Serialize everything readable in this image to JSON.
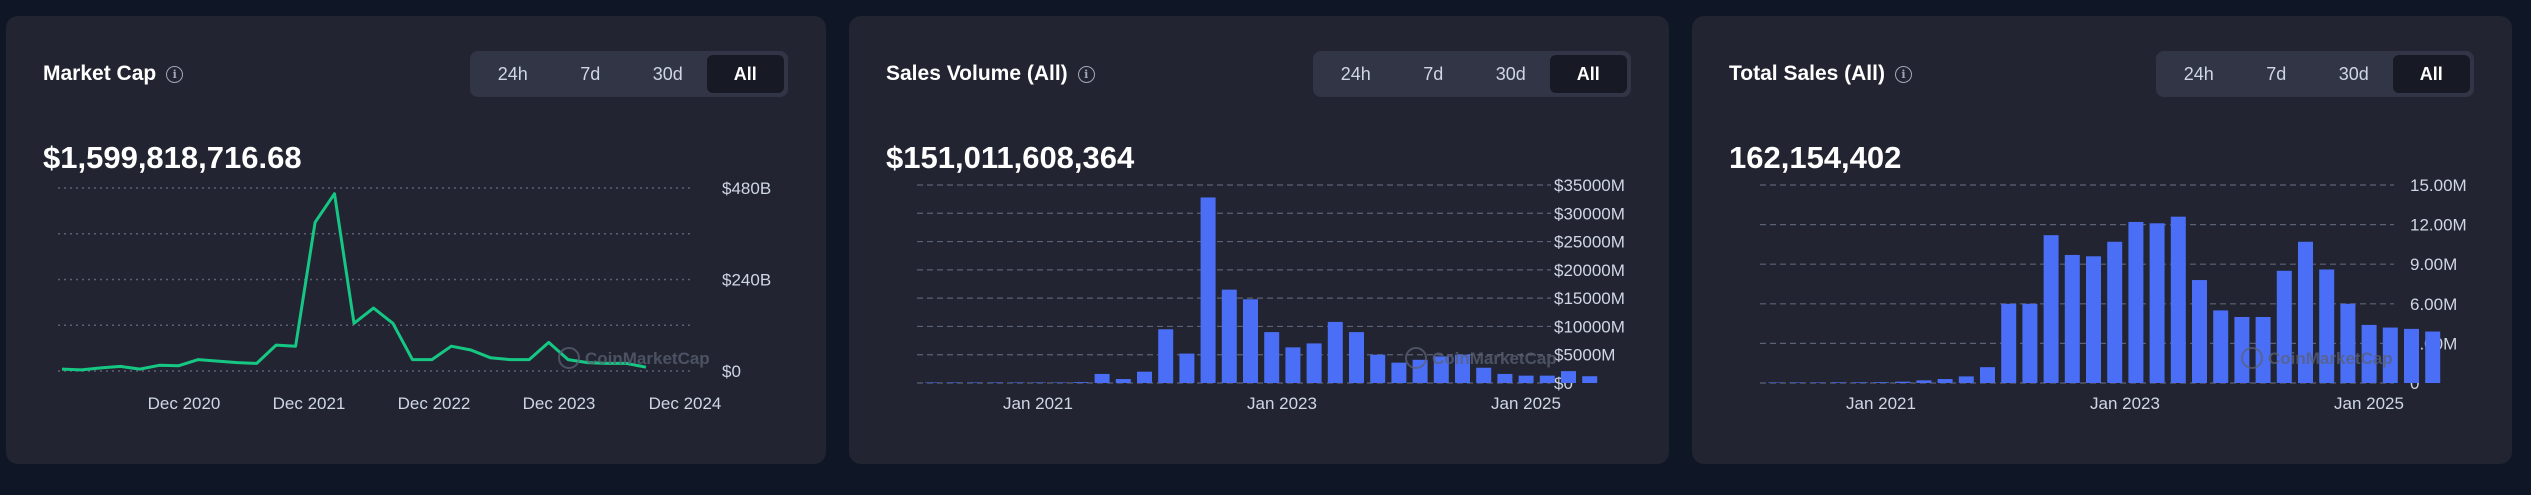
{
  "watermark": "CoinMarketCap",
  "colors": {
    "line": "#16c784",
    "bar": "#4a6ef5",
    "grid": "#5b6174",
    "background": "#222531",
    "page": "#0f1626"
  },
  "icons": {
    "info": "info-circle-icon"
  },
  "cards": [
    {
      "title": "Market Cap",
      "value": "$1,599,818,716.68",
      "ranges": [
        "24h",
        "7d",
        "30d",
        "All"
      ],
      "active_range": "All"
    },
    {
      "title": "Sales Volume (All)",
      "value": "$151,011,608,364",
      "ranges": [
        "24h",
        "7d",
        "30d",
        "All"
      ],
      "active_range": "All"
    },
    {
      "title": "Total Sales (All)",
      "value": "162,154,402",
      "ranges": [
        "24h",
        "7d",
        "30d",
        "All"
      ],
      "active_range": "All"
    }
  ],
  "chart_data": [
    {
      "type": "line",
      "title": "Market Cap",
      "color": "#16c784",
      "ylim": [
        0,
        480
      ],
      "yticks": [
        0,
        240,
        480
      ],
      "ytick_labels": [
        "$0",
        "$240B",
        "$480B"
      ],
      "grid": "dotted",
      "x_tick_labels": [
        "Dec 2020",
        "Dec 2021",
        "Dec 2022",
        "Dec 2023",
        "Dec 2024"
      ],
      "x": [
        "2019-12",
        "2020-02",
        "2020-04",
        "2020-06",
        "2020-08",
        "2020-10",
        "2020-12",
        "2021-02",
        "2021-04",
        "2021-06",
        "2021-08",
        "2021-10",
        "2021-12",
        "2022-02",
        "2022-04",
        "2022-06",
        "2022-08",
        "2022-10",
        "2022-12",
        "2023-02",
        "2023-04",
        "2023-06",
        "2023-08",
        "2023-10",
        "2023-12",
        "2024-02",
        "2024-04",
        "2024-06",
        "2024-08",
        "2024-10",
        "2024-12"
      ],
      "values": [
        5,
        3,
        8,
        12,
        5,
        15,
        14,
        30,
        26,
        22,
        20,
        68,
        65,
        390,
        465,
        125,
        165,
        125,
        30,
        30,
        65,
        55,
        35,
        30,
        30,
        75,
        30,
        22,
        20,
        20,
        10
      ]
    },
    {
      "type": "bar",
      "title": "Sales Volume (All)",
      "color": "#4a6ef5",
      "ylim": [
        0,
        35000
      ],
      "yticks": [
        0,
        5000,
        10000,
        15000,
        20000,
        25000,
        30000,
        35000
      ],
      "ytick_labels": [
        "$0",
        "$5000M",
        "$10000M",
        "$15000M",
        "$20000M",
        "$25000M",
        "$30000M",
        "$35000M"
      ],
      "grid": "dashed",
      "x_tick_labels": [
        "Jan 2021",
        "Jan 2023",
        "Jan 2025"
      ],
      "values": [
        0,
        0,
        0,
        0,
        0,
        0,
        40,
        150,
        1600,
        700,
        2000,
        9500,
        5200,
        32800,
        16500,
        14800,
        9000,
        6300,
        7000,
        10800,
        9000,
        5000,
        3600,
        4100,
        4700,
        5000,
        2700,
        1600,
        1300,
        1300,
        2100,
        1200
      ]
    },
    {
      "type": "bar",
      "title": "Total Sales (All)",
      "color": "#4a6ef5",
      "ylim": [
        0,
        15
      ],
      "yticks": [
        0,
        3,
        6,
        9,
        12,
        15
      ],
      "ytick_labels": [
        "0",
        "3.00M",
        "6.00M",
        "9.00M",
        "12.00M",
        "15.00M"
      ],
      "grid": "dashed",
      "x_tick_labels": [
        "Jan 2021",
        "Jan 2023",
        "Jan 2025"
      ],
      "values": [
        0.03,
        0.02,
        0.03,
        0.05,
        0.05,
        0.06,
        0.1,
        0.2,
        0.3,
        0.5,
        1.2,
        6.0,
        6.0,
        11.2,
        9.7,
        9.6,
        10.7,
        12.2,
        12.1,
        12.6,
        7.8,
        5.5,
        5.0,
        5.0,
        8.5,
        10.7,
        8.6,
        6.0,
        4.4,
        4.2,
        4.1,
        3.9
      ]
    }
  ]
}
